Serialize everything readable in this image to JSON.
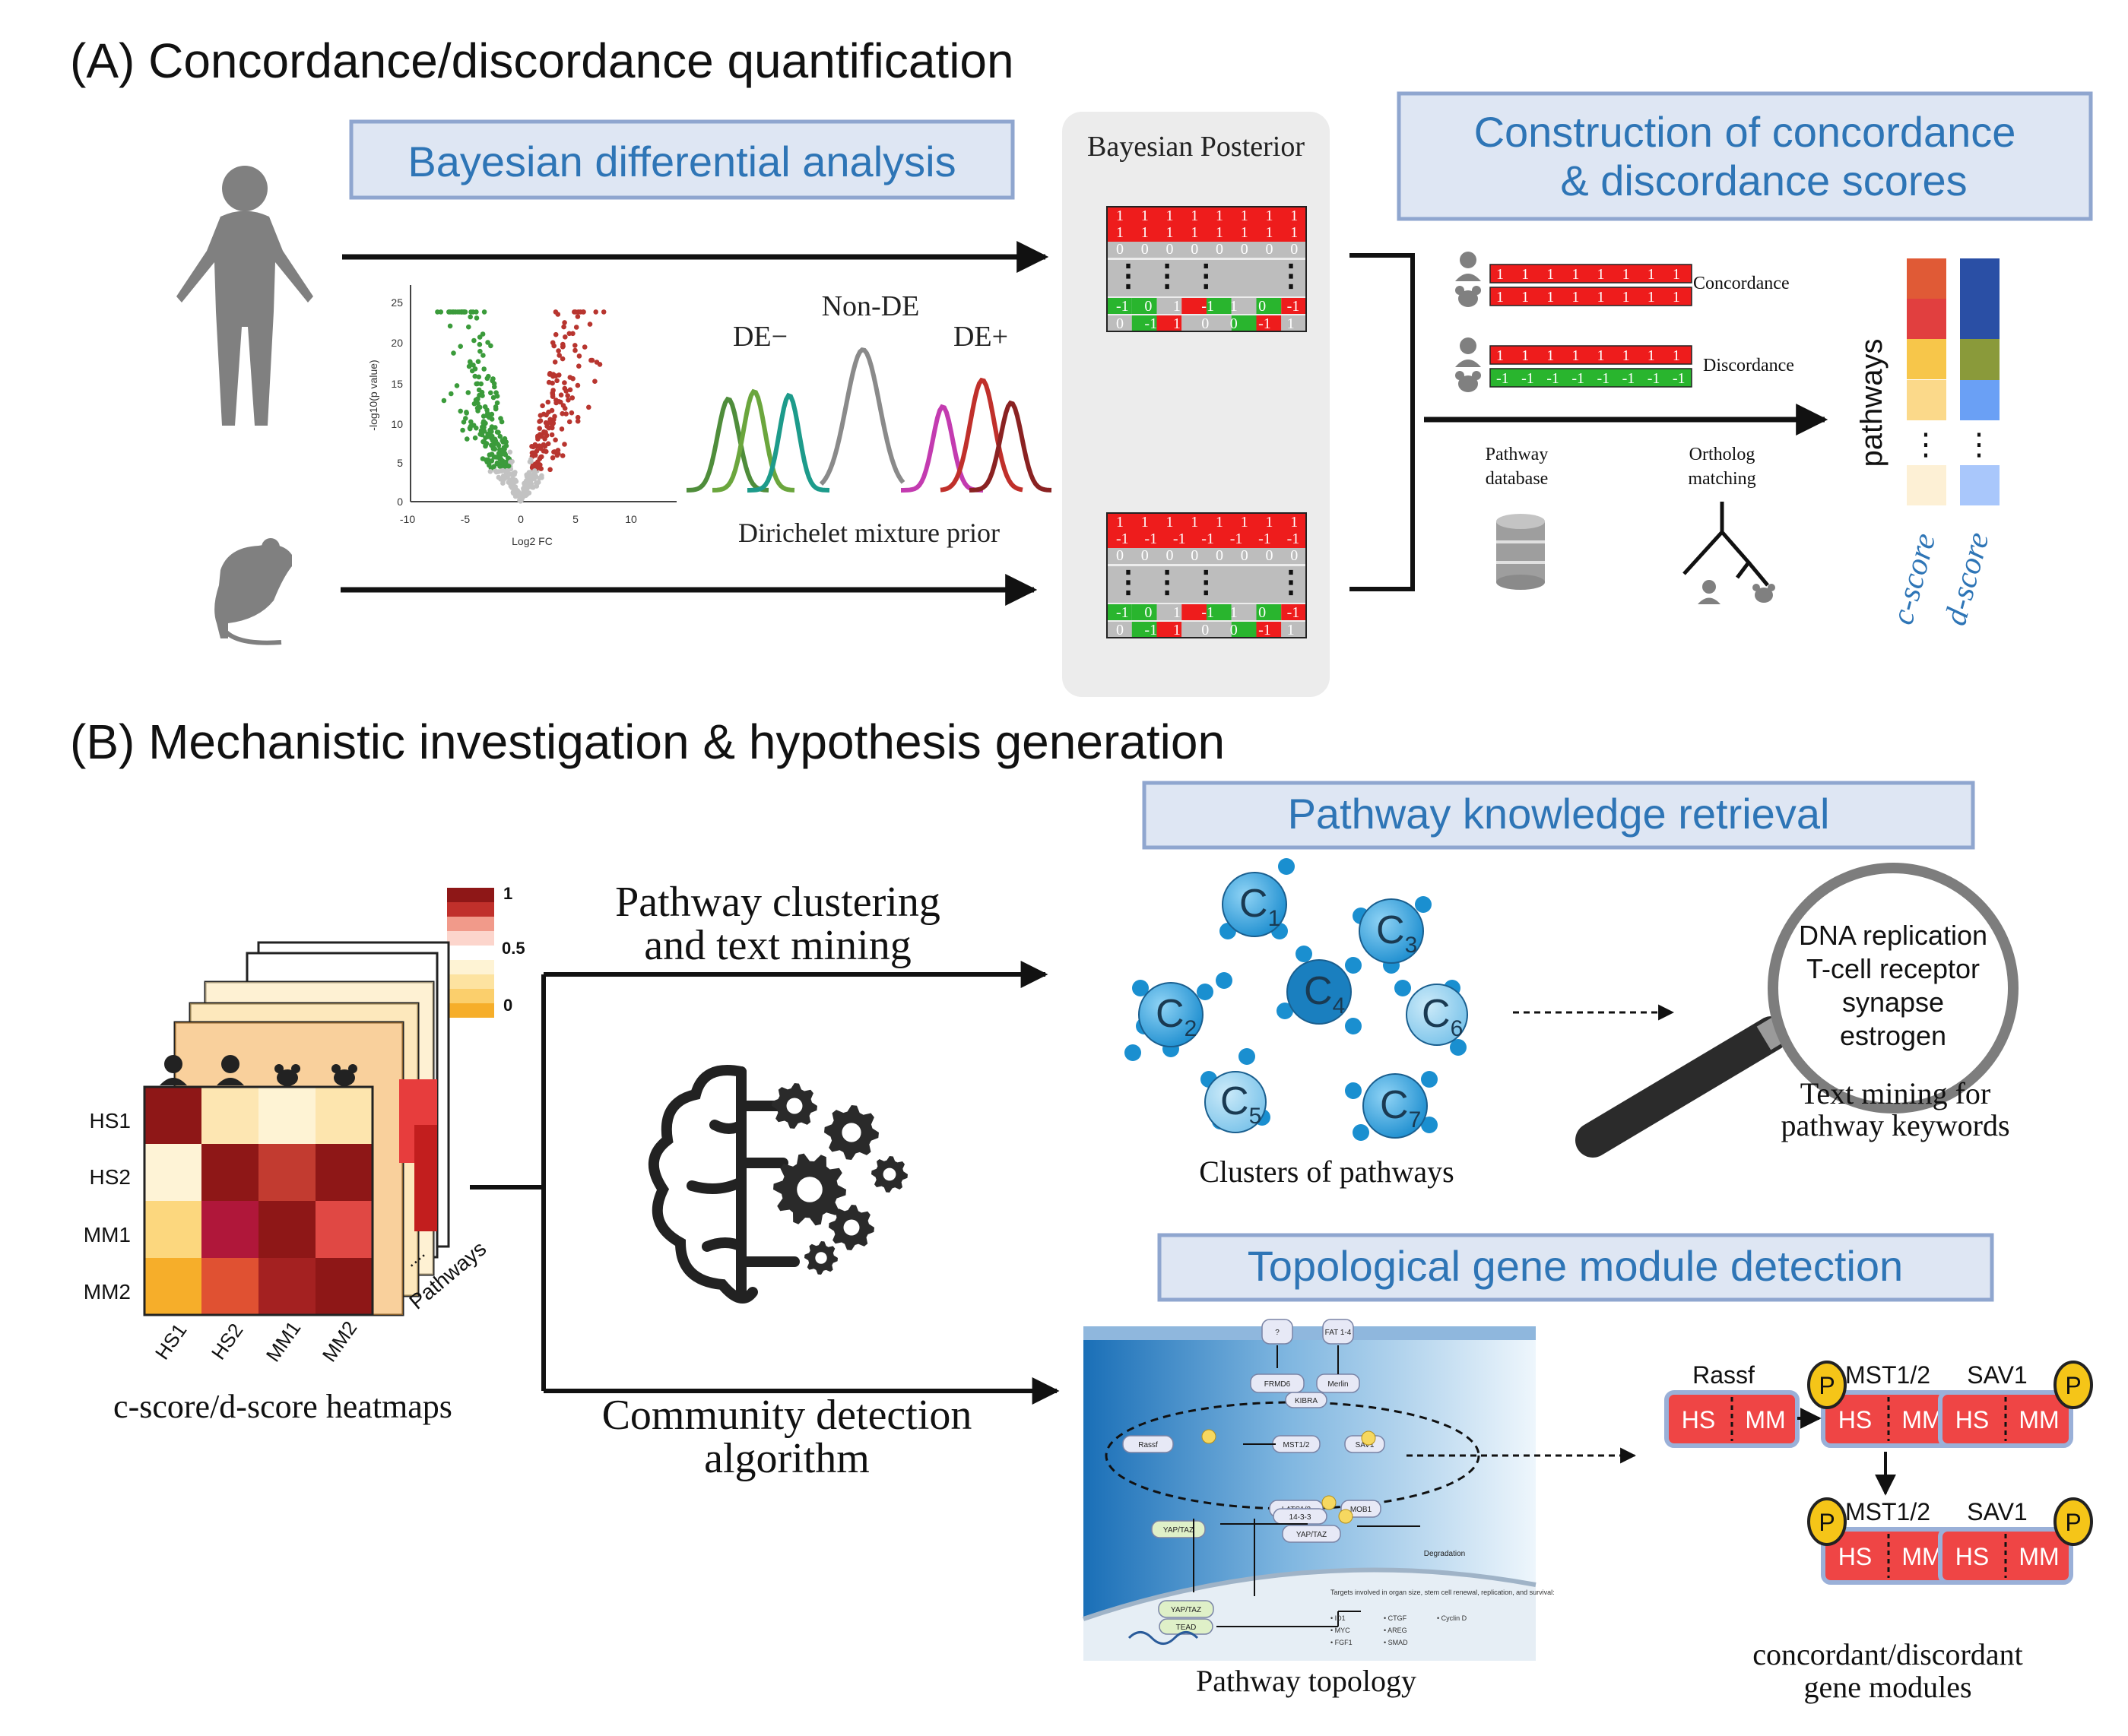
{
  "colors": {
    "blue_title": "#2e75b6",
    "box_fill": "#dee6f3",
    "box_stroke": "#8fa6cf",
    "red": "#ee1c1c",
    "green": "#29b52e",
    "grey": "#bdbdbd",
    "arrow": "#111111"
  },
  "panel_a": {
    "heading": "(A) Concordance/discordance quantification",
    "bayes_box": "Bayesian differential analysis",
    "volcano": {
      "ylabel": "-log10(p value)",
      "xlabel": "Log2 FC",
      "xticks": [
        "-10",
        "-5",
        "0",
        "5",
        "10"
      ],
      "yticks": [
        "0",
        "5",
        "10",
        "15",
        "20",
        "25"
      ]
    },
    "mixture": {
      "non_de": "Non-DE",
      "de_minus": "DE−",
      "de_plus": "DE+",
      "caption": "Dirichelet mixture prior"
    },
    "posterior": {
      "title": "Bayesian Posterior",
      "top_rows": [
        [
          "1",
          "1",
          "1",
          "1",
          "1",
          "1",
          "1",
          "1"
        ],
        [
          "1",
          "1",
          "1",
          "1",
          "1",
          "1",
          "1",
          "1"
        ],
        [
          "0",
          "0",
          "0",
          "0",
          "0",
          "0",
          "0",
          "0"
        ],
        [
          "-1",
          "0",
          "1",
          "-1",
          "1",
          "0",
          "-1"
        ],
        [
          "0",
          "-1",
          "1",
          "0",
          "0",
          "-1",
          "1"
        ]
      ],
      "bottom_rows": [
        [
          "1",
          "1",
          "1",
          "1",
          "1",
          "1",
          "1",
          "1"
        ],
        [
          "-1",
          "-1",
          "-1",
          "-1",
          "-1",
          "-1",
          "-1"
        ],
        [
          "0",
          "0",
          "0",
          "0",
          "0",
          "0",
          "0",
          "0"
        ],
        [
          "-1",
          "0",
          "1",
          "-1",
          "1",
          "0",
          "-1"
        ],
        [
          "0",
          "-1",
          "1",
          "0",
          "0",
          "-1",
          "1"
        ]
      ],
      "dots": "⋮ ⋮ ⋮"
    },
    "construct_box_line1": "Construction of concordance",
    "construct_box_line2": "& discordance scores",
    "concordance_label": "Concordance",
    "discordance_label": "Discordance",
    "conc_row": [
      "1",
      "1",
      "1",
      "1",
      "1",
      "1",
      "1",
      "1"
    ],
    "disc_row_top": [
      "1",
      "1",
      "1",
      "1",
      "1",
      "1",
      "1",
      "1"
    ],
    "disc_row_bottom": [
      "-1",
      "-1",
      "-1",
      "-1",
      "-1",
      "-1",
      "-1",
      "-1"
    ],
    "pathway_db_line1": "Pathway",
    "pathway_db_line2": "database",
    "ortholog_line1": "Ortholog",
    "ortholog_line2": "matching",
    "pathways_label": "pathways",
    "cscore": "c-score",
    "dscore": "d-score",
    "cscore_colors": [
      "#e05a36",
      "#e13f3f",
      "#f7c64a",
      "#fbd98a",
      "#fdf0d5"
    ],
    "dscore_colors": [
      "#2a4fa5",
      "#8a9a3a",
      "#6aa0f5",
      "#a9c7fb"
    ]
  },
  "panel_b": {
    "heading": "(B) Mechanistic investigation & hypothesis generation",
    "heatmap": {
      "caption": "c-score/d-score heatmaps",
      "row_labels": [
        "HS1",
        "HS2",
        "MM1",
        "MM2"
      ],
      "col_labels": [
        "HS1",
        "HS2",
        "MM1",
        "MM2"
      ],
      "legend_ticks": [
        "1",
        "0.5",
        "0"
      ],
      "pathways_label": "Pathways",
      "dots": "....",
      "cells": [
        [
          "#8e1717",
          "#fde6b2",
          "#fef3d4",
          "#fde5ae"
        ],
        [
          "#fef3d6",
          "#8e1717",
          "#c23b30",
          "#8e1717"
        ],
        [
          "#fcd77e",
          "#b0173a",
          "#8e1717",
          "#e04844"
        ],
        [
          "#f6ae2a",
          "#e05132",
          "#a42121",
          "#8e1717"
        ]
      ]
    },
    "clustering_line1": "Pathway clustering",
    "clustering_line2": "and text mining",
    "community_line1": "Community detection",
    "community_line2": "algorithm",
    "knowledge_box": "Pathway knowledge retrieval",
    "clusters": [
      "C1",
      "C2",
      "C3",
      "C4",
      "C5",
      "C6",
      "C7"
    ],
    "clusters_caption": "Clusters of pathways",
    "keywords": [
      "DNA replication",
      "T-cell receptor",
      "synapse",
      "estrogen"
    ],
    "text_mining_line1": "Text mining for",
    "text_mining_line2": "pathway keywords",
    "topo_box": "Topological gene module detection",
    "topology_caption": "Pathway topology",
    "topology_nodes": [
      "FRMD6",
      "Merlin",
      "KIBRA",
      "Rassf",
      "MST1/2",
      "SAV1",
      "LATS1/2",
      "MOB1",
      "YAP/TAZ",
      "14-3-3",
      "YAP/TAZ",
      "Degradation",
      "YAP/TAZ",
      "TEAD",
      "FAT 1-4",
      "?"
    ],
    "topology_targets_title": "Targets involved in organ size, stem cell renewal, replication, and survival:",
    "topology_targets": [
      "• ID1",
      "• MYC",
      "• FGF1",
      "• CTGF",
      "• AREG",
      "• SMAD",
      "• Cyclin D"
    ],
    "modules": {
      "rassf": "Rassf",
      "mst": "MST1/2",
      "sav": "SAV1",
      "hs": "HS",
      "mm": "MM",
      "p": "P",
      "caption_line1": "concordant/discordant",
      "caption_line2": "gene modules"
    }
  }
}
